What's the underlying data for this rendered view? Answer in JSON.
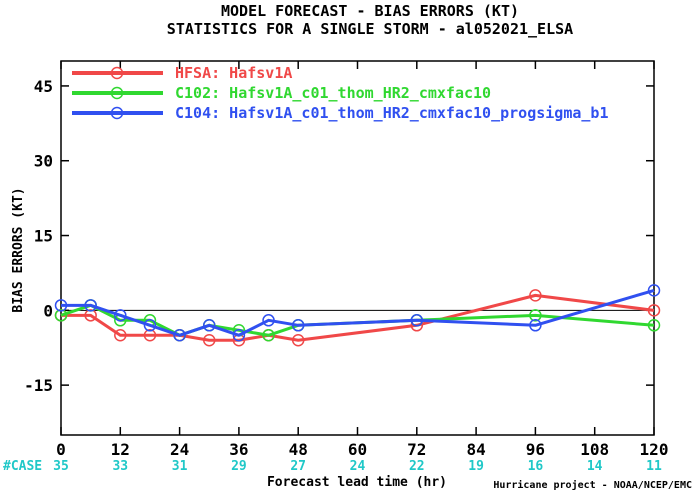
{
  "title_line1": "MODEL FORECAST - BIAS ERRORS (KT)",
  "title_line2": "STATISTICS FOR A SINGLE STORM - al052021_ELSA",
  "credit": "Hurricane project - NOAA/NCEP/EMC",
  "colors": {
    "hfsa": "#f04848",
    "c102": "#30d830",
    "c104": "#3050f0",
    "case": "#20c8c8"
  },
  "chart_data": {
    "type": "line",
    "title": "MODEL FORECAST - BIAS ERRORS (KT)",
    "subtitle": "STATISTICS FOR A SINGLE STORM - al052021_ELSA",
    "xlabel": "Forecast lead time (hr)",
    "ylabel": "BIAS ERRORS (KT)",
    "xlim": [
      0,
      120
    ],
    "ylim": [
      -25,
      50
    ],
    "xticks": [
      0,
      12,
      24,
      36,
      48,
      60,
      72,
      84,
      96,
      108,
      120
    ],
    "yticks": [
      45,
      30,
      15,
      0,
      -15
    ],
    "legend_position": "top-left",
    "grid": false,
    "case_label": "#CASE",
    "cases": [
      35,
      33,
      31,
      29,
      27,
      24,
      22,
      19,
      16,
      14,
      11
    ],
    "series": [
      {
        "name": "HFSA: Hafsv1A",
        "color": "#f04848",
        "x": [
          0,
          6,
          12,
          18,
          24,
          30,
          36,
          42,
          48,
          72,
          96,
          120
        ],
        "y": [
          -1,
          -1,
          -5,
          -5,
          -5,
          -6,
          -6,
          -5,
          -6,
          -3,
          3,
          0
        ]
      },
      {
        "name": "C102: Hafsv1A_c01_thom_HR2_cmxfac10",
        "color": "#30d830",
        "x": [
          0,
          6,
          12,
          18,
          24,
          30,
          36,
          42,
          48,
          72,
          96,
          120
        ],
        "y": [
          -1,
          1,
          -2,
          -2,
          -5,
          -3,
          -4,
          -5,
          -3,
          -2,
          -1,
          -3
        ]
      },
      {
        "name": "C104: Hafsv1A_c01_thom_HR2_cmxfac10_progsigma_b1",
        "color": "#3050f0",
        "x": [
          0,
          6,
          12,
          18,
          24,
          30,
          36,
          42,
          48,
          72,
          96,
          120
        ],
        "y": [
          1,
          1,
          -1,
          -3,
          -5,
          -3,
          -5,
          -2,
          -3,
          -2,
          -3,
          4
        ]
      }
    ]
  }
}
